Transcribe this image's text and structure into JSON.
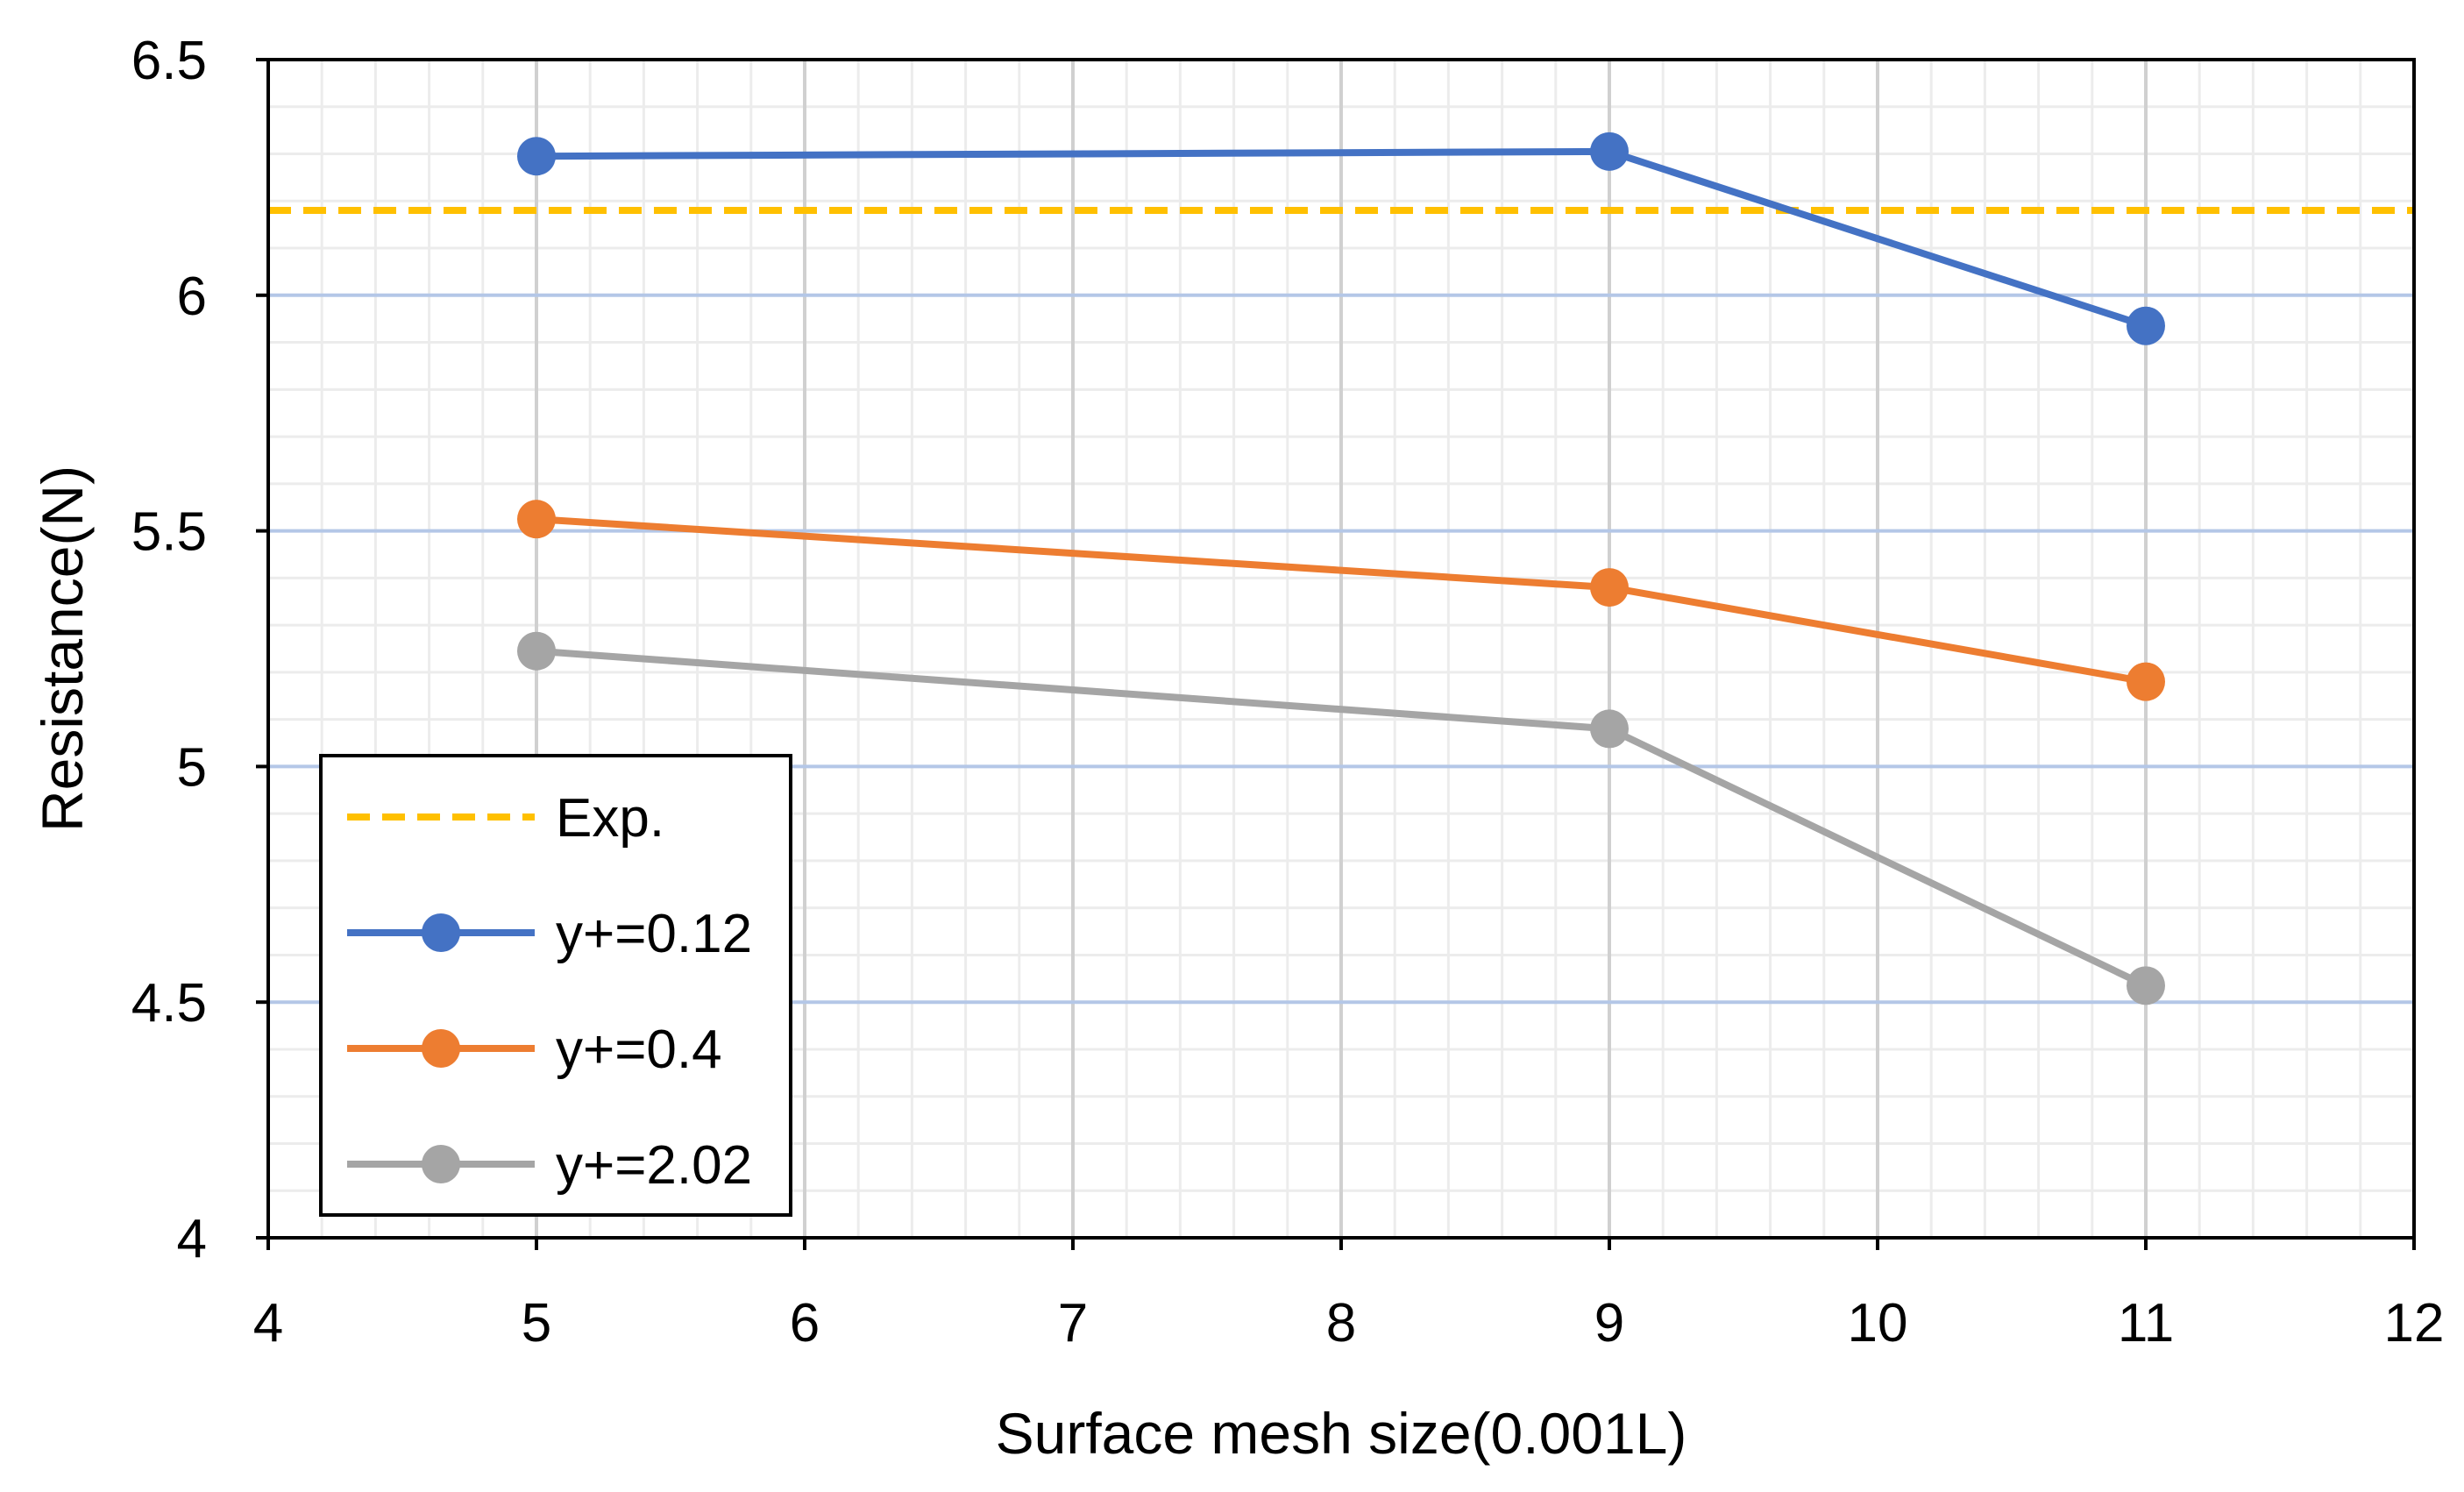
{
  "chart_data": {
    "type": "line",
    "title": "",
    "xlabel": "Surface mesh size(0.001L)",
    "ylabel": "Resistance(N)",
    "xlim": [
      4,
      12
    ],
    "ylim": [
      4,
      6.5
    ],
    "xticks": [
      4,
      5,
      6,
      7,
      8,
      9,
      10,
      11,
      12
    ],
    "yticks": [
      4,
      4.5,
      5,
      5.5,
      6,
      6.5
    ],
    "x_tick_labels": [
      "4",
      "5",
      "6",
      "7",
      "8",
      "9",
      "10",
      "11",
      "12"
    ],
    "y_tick_labels": [
      "4",
      "4.5",
      "5",
      "5.5",
      "6",
      "6.5"
    ],
    "grid": true,
    "legend_position": "bottom-left",
    "reference_lines": [
      {
        "name": "Exp.",
        "y": 6.18,
        "color": "#FFC000",
        "style": "dashed"
      }
    ],
    "series": [
      {
        "name": "y+=0.12",
        "color": "#4472C4",
        "x": [
          5,
          9,
          11
        ],
        "y": [
          6.295,
          6.305,
          5.935
        ]
      },
      {
        "name": "y+=0.4",
        "color": "#ED7D31",
        "x": [
          5,
          9,
          11
        ],
        "y": [
          5.525,
          5.38,
          5.18
        ]
      },
      {
        "name": "y+=2.02",
        "color": "#A5A5A5",
        "x": [
          5,
          9,
          11
        ],
        "y": [
          5.245,
          5.08,
          4.535
        ]
      }
    ]
  }
}
